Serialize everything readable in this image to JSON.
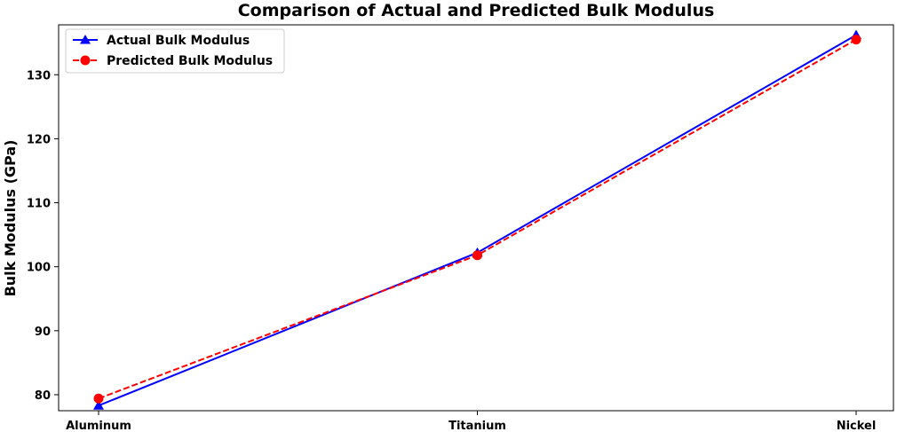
{
  "chart_data": {
    "type": "line",
    "title": "Comparison of Actual and Predicted Bulk Modulus",
    "xlabel": "",
    "ylabel": "Bulk Modulus (GPa)",
    "categories": [
      "Aluminum",
      "Titanium",
      "Nickel"
    ],
    "ylim": [
      77.5,
      137.8
    ],
    "yticks": [
      80,
      90,
      100,
      110,
      120,
      130
    ],
    "grid": false,
    "legend_position": "top-left",
    "series": [
      {
        "name": "Actual Bulk Modulus",
        "values": [
          78.3,
          102.2,
          136.2
        ],
        "color": "#0000ff",
        "line_style": "solid",
        "marker": "triangle"
      },
      {
        "name": "Predicted Bulk Modulus",
        "values": [
          79.4,
          101.8,
          135.5
        ],
        "color": "#ff0000",
        "line_style": "dashed",
        "marker": "circle"
      }
    ]
  }
}
